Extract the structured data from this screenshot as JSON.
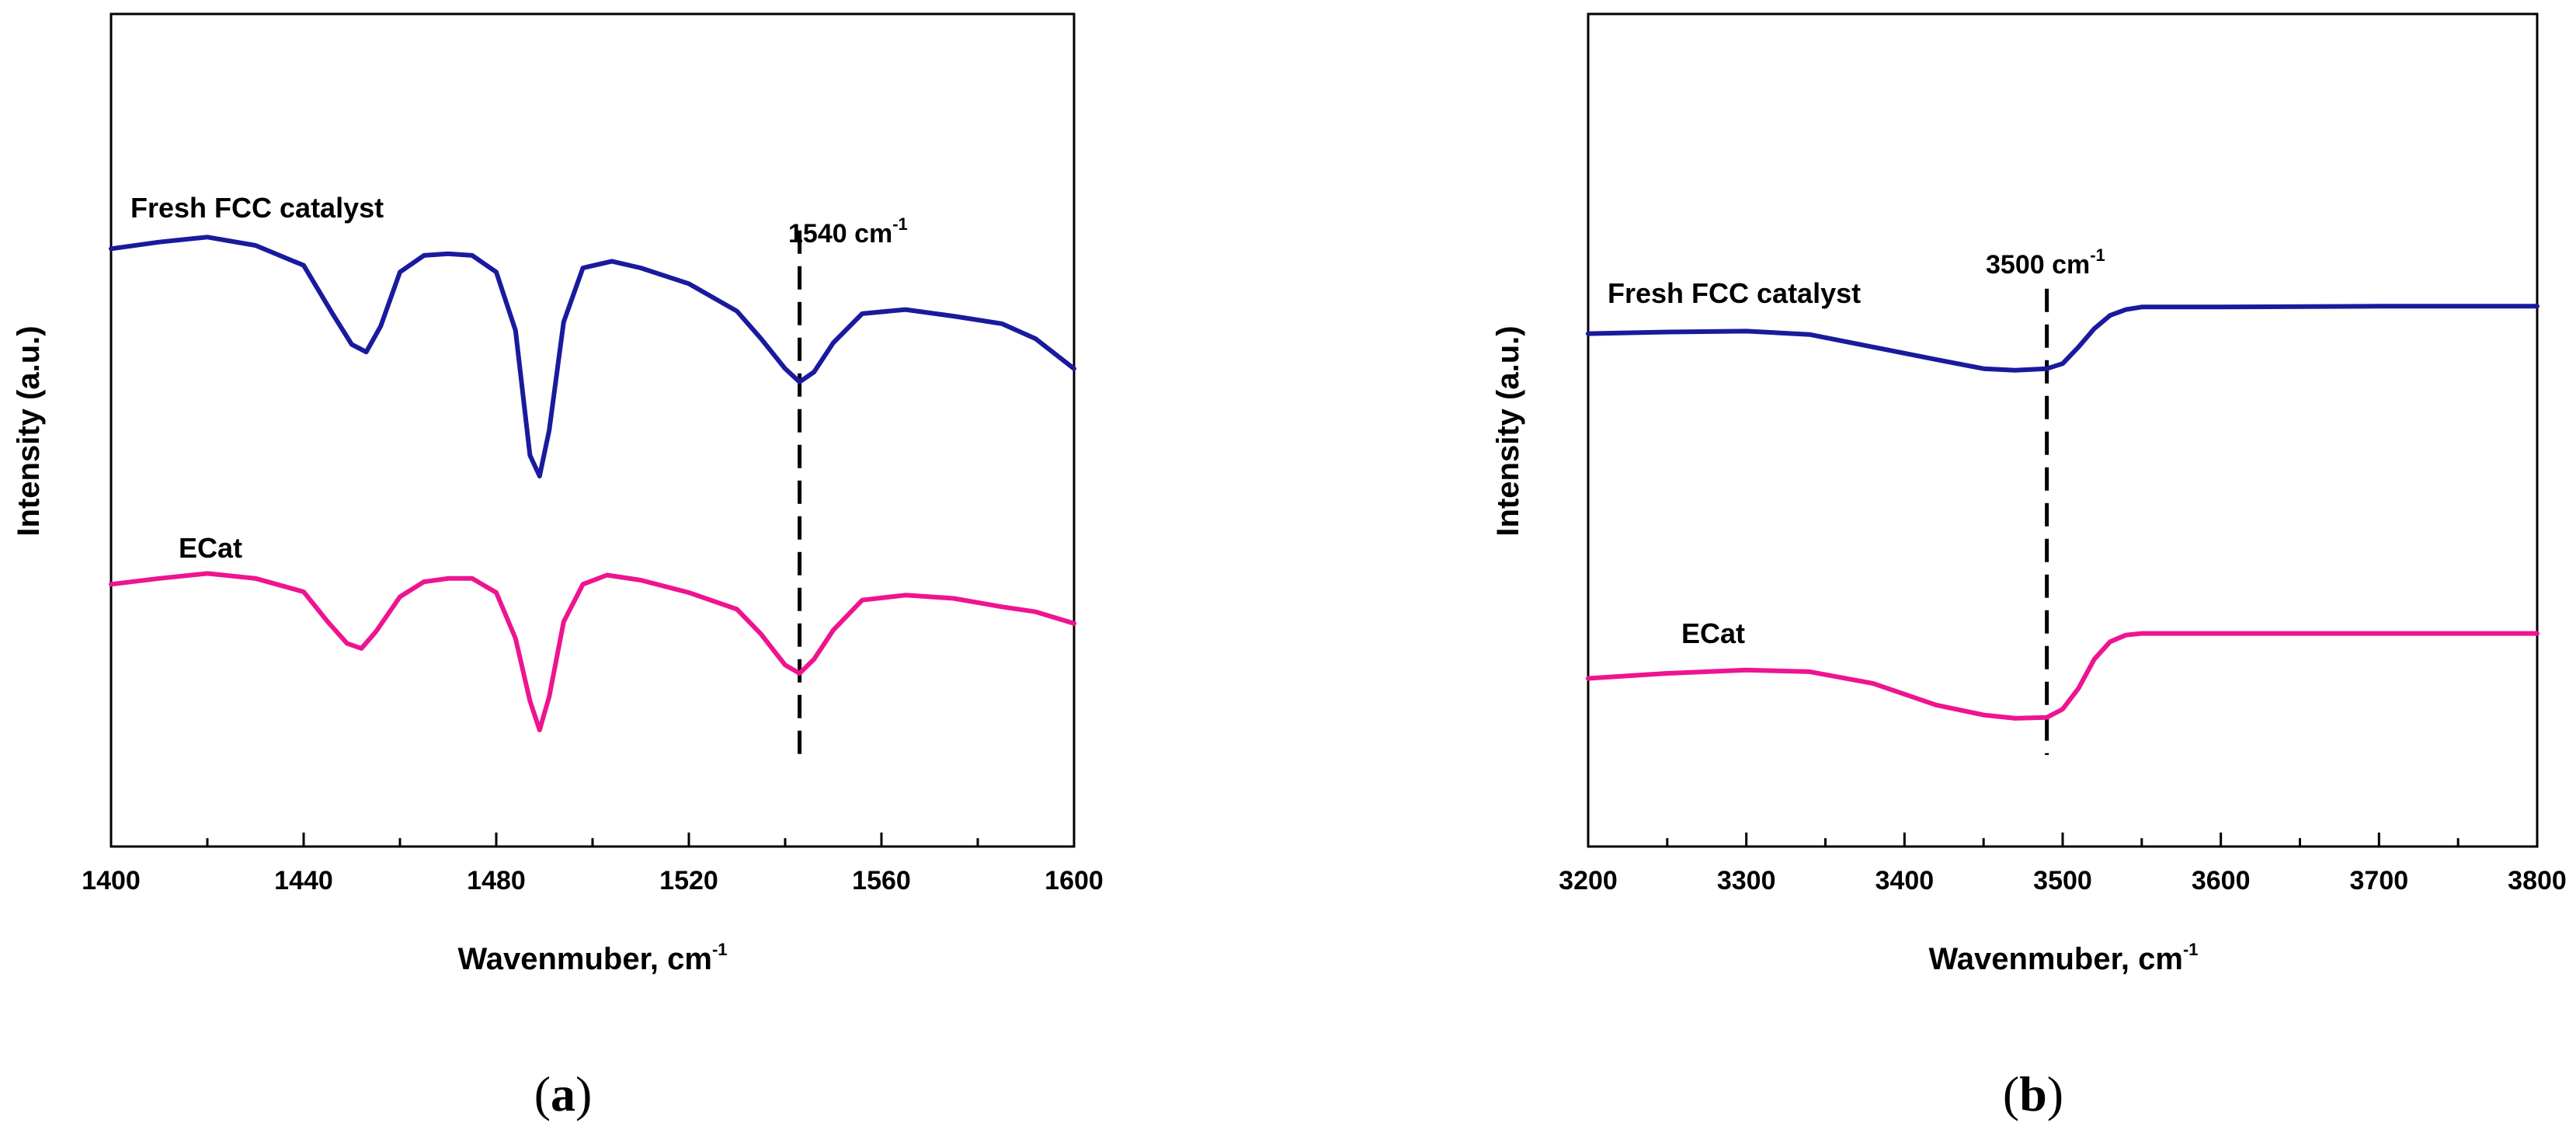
{
  "chart_data": [
    {
      "type": "line",
      "panel_label": "a",
      "title": "",
      "xlabel": "Wavenmuber, cm",
      "xlabel_sup": "-1",
      "ylabel": "Intensity (a.u.)",
      "xlim": [
        1400,
        1600
      ],
      "ylim": [
        0,
        100
      ],
      "xticks": [
        1400,
        1440,
        1480,
        1520,
        1560,
        1600
      ],
      "grid": false,
      "legend": "none",
      "series": [
        {
          "name": "Fresh FCC catalyst",
          "color": "#1a1a9e",
          "x": [
            1400,
            1410,
            1420,
            1430,
            1440,
            1446,
            1450,
            1453,
            1456,
            1460,
            1465,
            1470,
            1475,
            1480,
            1484,
            1487,
            1489,
            1491,
            1494,
            1498,
            1504,
            1510,
            1520,
            1530,
            1535,
            1540,
            1543,
            1546,
            1550,
            1556,
            1565,
            1575,
            1585,
            1592,
            1600
          ],
          "y": [
            71.8,
            72.6,
            73.2,
            72.2,
            69.8,
            64.0,
            60.3,
            59.4,
            62.5,
            69.0,
            71.0,
            71.2,
            71.0,
            69.0,
            62.0,
            47.0,
            44.5,
            50.0,
            63.0,
            69.5,
            70.3,
            69.5,
            67.6,
            64.3,
            61.0,
            57.4,
            55.8,
            57.0,
            60.5,
            64.0,
            64.5,
            63.7,
            62.8,
            61.0,
            57.4
          ]
        },
        {
          "name": "ECat",
          "color": "#ee1490",
          "x": [
            1400,
            1410,
            1420,
            1430,
            1440,
            1445,
            1449,
            1452,
            1455,
            1460,
            1465,
            1470,
            1475,
            1480,
            1484,
            1487,
            1489,
            1491,
            1494,
            1498,
            1503,
            1510,
            1520,
            1530,
            1535,
            1540,
            1543,
            1546,
            1550,
            1556,
            1565,
            1575,
            1585,
            1592,
            1600
          ],
          "y": [
            31.5,
            32.2,
            32.8,
            32.2,
            30.6,
            27.0,
            24.4,
            23.8,
            25.8,
            30.0,
            31.8,
            32.2,
            32.2,
            30.5,
            25.0,
            17.5,
            14.0,
            18.0,
            27.0,
            31.5,
            32.6,
            32.0,
            30.5,
            28.5,
            25.5,
            21.8,
            20.8,
            22.5,
            26.0,
            29.6,
            30.2,
            29.8,
            28.8,
            28.2,
            26.8
          ]
        }
      ],
      "annotations": [
        {
          "type": "vline",
          "x": 1543,
          "y_from": 11,
          "y_to": 74,
          "style": "dashed"
        },
        {
          "type": "text",
          "text": "1540 cm",
          "sup": "-1",
          "x": 1543,
          "y": 75
        },
        {
          "type": "text",
          "text": "Fresh FCC catalyst",
          "series": 0
        },
        {
          "type": "text",
          "text": "ECat",
          "series": 1
        }
      ]
    },
    {
      "type": "line",
      "panel_label": "b",
      "title": "",
      "xlabel": "Wavenmuber, cm",
      "xlabel_sup": "-1",
      "ylabel": "Intensity (a.u.)",
      "xlim": [
        3200,
        3800
      ],
      "ylim": [
        0,
        100
      ],
      "xticks": [
        3200,
        3300,
        3400,
        3500,
        3600,
        3700,
        3800
      ],
      "grid": false,
      "legend": "none",
      "series": [
        {
          "name": "Fresh FCC catalyst",
          "color": "#1a1a9e",
          "x": [
            3200,
            3250,
            3300,
            3340,
            3380,
            3420,
            3450,
            3470,
            3490,
            3500,
            3510,
            3520,
            3530,
            3540,
            3550,
            3600,
            3700,
            3800
          ],
          "y": [
            61.6,
            61.8,
            61.9,
            61.5,
            60.0,
            58.5,
            57.4,
            57.2,
            57.4,
            58.0,
            60.0,
            62.2,
            63.8,
            64.5,
            64.8,
            64.8,
            64.9,
            64.9
          ]
        },
        {
          "name": "ECat",
          "color": "#ee1490",
          "x": [
            3200,
            3250,
            3300,
            3340,
            3380,
            3420,
            3450,
            3470,
            3490,
            3500,
            3510,
            3520,
            3530,
            3540,
            3550,
            3600,
            3700,
            3800
          ],
          "y": [
            20.2,
            20.8,
            21.2,
            21.0,
            19.6,
            17.0,
            15.8,
            15.4,
            15.5,
            16.5,
            19.0,
            22.5,
            24.6,
            25.4,
            25.6,
            25.6,
            25.6,
            25.6
          ]
        }
      ],
      "annotations": [
        {
          "type": "vline",
          "x": 3490,
          "y_from": 11,
          "y_to": 67,
          "style": "dashed"
        },
        {
          "type": "text",
          "text": "3500 cm",
          "sup": "-1",
          "x": 3490,
          "y": 68
        },
        {
          "type": "text",
          "text": "Fresh FCC catalyst",
          "series": 0
        },
        {
          "type": "text",
          "text": "ECat",
          "series": 1
        }
      ]
    }
  ]
}
